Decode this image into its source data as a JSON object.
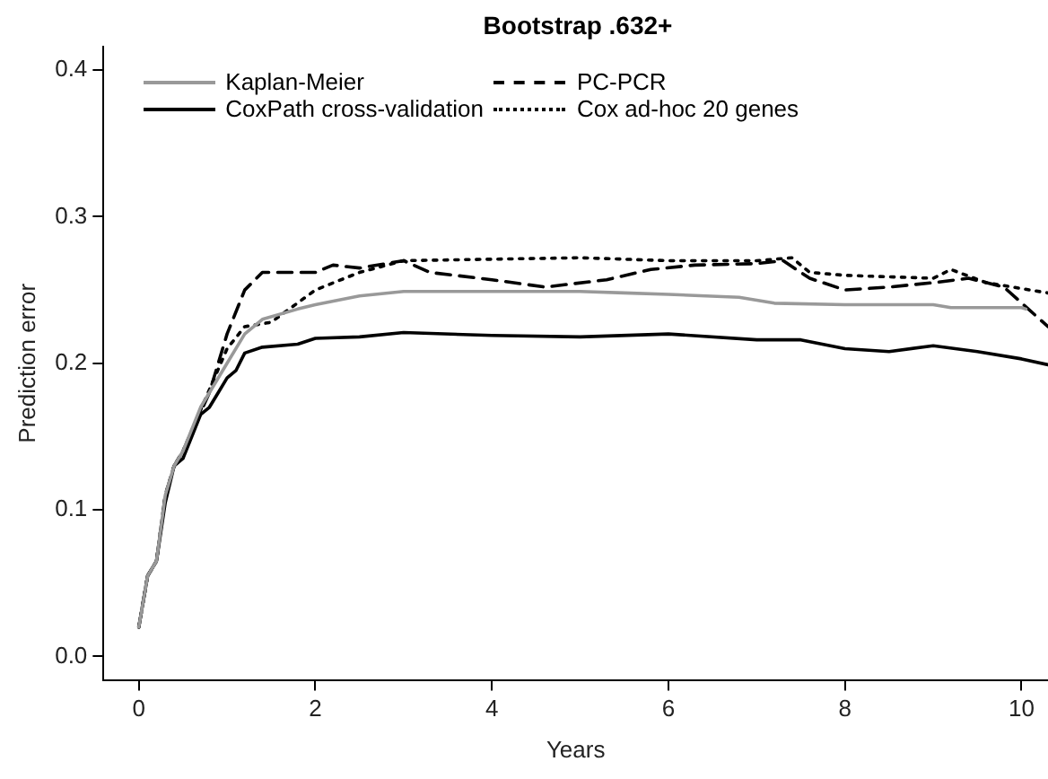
{
  "chart_data": {
    "type": "line",
    "title": "Bootstrap .632+",
    "xlabel": "Years",
    "ylabel": "Prediction error",
    "xlim": [
      -0.4,
      10.3
    ],
    "ylim": [
      -0.016,
      0.416
    ],
    "xticks": [
      0,
      2,
      4,
      6,
      8,
      10
    ],
    "yticks": [
      {
        "value": 0,
        "label": "0.0"
      },
      0.1,
      0.2,
      0.3,
      0.4
    ],
    "grid": false,
    "legend": "top left",
    "marker": "none",
    "series": [
      {
        "name": "Kaplan-Meier",
        "color": "#999999",
        "line_style": "solid",
        "x": [
          0,
          0.1,
          0.2,
          0.3,
          0.4,
          0.5,
          0.7,
          0.8,
          1.0,
          1.2,
          1.4,
          1.8,
          2.0,
          2.5,
          3.0,
          5.0,
          5.5,
          6.0,
          6.8,
          7.2,
          8.0,
          9.0,
          9.2,
          10.0,
          10.05
        ],
        "values": [
          0.02,
          0.055,
          0.065,
          0.11,
          0.13,
          0.14,
          0.17,
          0.18,
          0.2,
          0.22,
          0.23,
          0.237,
          0.24,
          0.246,
          0.249,
          0.249,
          0.248,
          0.247,
          0.245,
          0.241,
          0.24,
          0.24,
          0.238,
          0.238,
          0.237
        ]
      },
      {
        "name": "PC-PCR",
        "color": "#000000",
        "line_style": "dashed",
        "x": [
          0,
          0.1,
          0.2,
          0.3,
          0.4,
          0.5,
          0.8,
          1.0,
          1.2,
          1.4,
          2.0,
          2.2,
          2.5,
          3.0,
          3.3,
          4.0,
          4.6,
          5.3,
          5.8,
          6.3,
          7.0,
          7.3,
          7.6,
          8.0,
          8.5,
          9.0,
          9.4,
          9.8,
          10.3
        ],
        "values": [
          0.02,
          0.055,
          0.065,
          0.11,
          0.13,
          0.14,
          0.18,
          0.22,
          0.25,
          0.262,
          0.262,
          0.267,
          0.265,
          0.27,
          0.262,
          0.257,
          0.252,
          0.257,
          0.264,
          0.267,
          0.268,
          0.27,
          0.258,
          0.25,
          0.252,
          0.255,
          0.258,
          0.252,
          0.225
        ]
      },
      {
        "name": "CoxPath cross-validation",
        "color": "#000000",
        "line_style": "solid",
        "x": [
          0,
          0.1,
          0.2,
          0.3,
          0.4,
          0.5,
          0.6,
          0.7,
          0.8,
          0.9,
          1.0,
          1.1,
          1.2,
          1.4,
          1.8,
          2.0,
          2.5,
          3.0,
          4.0,
          5.0,
          6.0,
          7.0,
          7.5,
          8.0,
          8.5,
          9.0,
          9.5,
          10.0,
          10.3
        ],
        "values": [
          0.02,
          0.055,
          0.065,
          0.105,
          0.13,
          0.135,
          0.15,
          0.165,
          0.17,
          0.18,
          0.19,
          0.195,
          0.207,
          0.211,
          0.213,
          0.217,
          0.218,
          0.221,
          0.219,
          0.218,
          0.22,
          0.216,
          0.216,
          0.21,
          0.208,
          0.212,
          0.208,
          0.203,
          0.199
        ]
      },
      {
        "name": "Cox ad-hoc 20 genes",
        "color": "#000000",
        "line_style": "dotted",
        "x": [
          0,
          0.1,
          0.2,
          0.3,
          0.4,
          0.5,
          1.0,
          1.2,
          1.5,
          2.0,
          2.5,
          3.0,
          4.0,
          5.0,
          6.0,
          7.0,
          7.4,
          7.6,
          8.0,
          9.0,
          9.2,
          9.6,
          10.3
        ],
        "values": [
          0.02,
          0.055,
          0.065,
          0.11,
          0.13,
          0.14,
          0.21,
          0.225,
          0.228,
          0.25,
          0.262,
          0.27,
          0.271,
          0.272,
          0.27,
          0.27,
          0.272,
          0.262,
          0.26,
          0.258,
          0.264,
          0.255,
          0.248
        ]
      }
    ]
  }
}
